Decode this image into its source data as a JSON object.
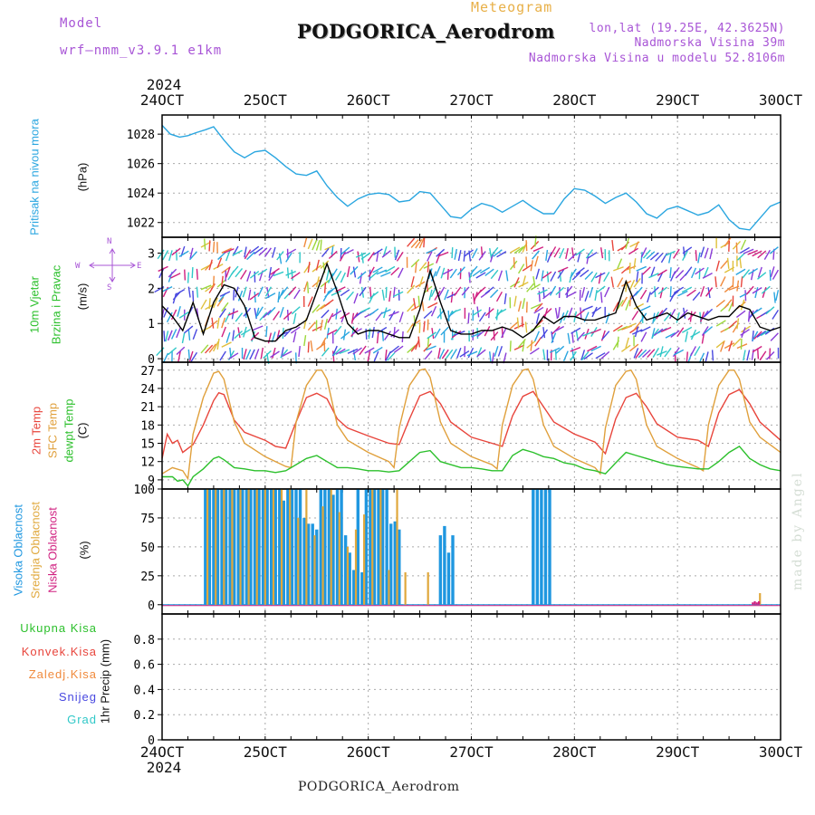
{
  "header": {
    "model_label": "Model",
    "model_name": "wrf–nmm_v3.9.1  e1km",
    "chart_kind": "Meteogram",
    "station": "PODGORICA_Aerodrom",
    "lonlat": "lon,lat (19.25E, 42.3625N)",
    "altitude": "Nadmorska Visina 39m",
    "model_altitude": "Nadmorska Visina u modelu 52.8106m",
    "footer_station": "PODGORICA_Aerodrom",
    "credit": "made by Angel"
  },
  "time_axis": {
    "year": "2024",
    "labels": [
      "24OCT",
      "25OCT",
      "26OCT",
      "27OCT",
      "28OCT",
      "29OCT",
      "30OCT"
    ]
  },
  "panel_labels": {
    "pressure_a": "Pritisak na nivou mora",
    "pressure_unit": "(hPa)",
    "wind_a": "10m Vjetar",
    "wind_b": "Brzina i Pravac",
    "wind_unit": "(m/s)",
    "compass_n": "N",
    "compass_s": "S",
    "compass_w": "W",
    "compass_e": "E",
    "temp_a": "2m Temp",
    "temp_b": "SFC Temp",
    "temp_c": "dewpt Temp",
    "temp_unit": "(C)",
    "cloud_a": "Visoka Oblacnost",
    "cloud_b": "Srednja Oblacnost",
    "cloud_c": "Niska Oblacnost",
    "cloud_unit": "(%)",
    "precip_unit": "1hr Precip (mm)",
    "precip_items": [
      "Ukupna Kisa",
      "Konvek.Kisa",
      "Zaledj.Kisa",
      "Snijeg",
      "Grad"
    ]
  },
  "colors": {
    "pressure": "#2aa6e0",
    "wind_speed": "#000000",
    "temp2m": "#e8453c",
    "sfc": "#e0a03c",
    "dewpt": "#2cc02c",
    "cloud_high": "#1f97e0",
    "cloud_mid": "#e0a83c",
    "cloud_low": "#d02080",
    "precip_total": "#2cc02c",
    "precip_conv": "#e8453c",
    "precip_frz": "#f08a3c",
    "precip_snow": "#4848e0",
    "precip_hail": "#30c8c8",
    "label_wind_a": "#2cc02c",
    "label_wind_b": "#2cc02c",
    "label_compass": "#a855d6"
  },
  "chart_data": [
    {
      "type": "line",
      "panel": "pressure",
      "x_unit": "days since 24 OCT 00UTC",
      "ylim": [
        1021,
        1029.3
      ],
      "yticks": [
        1022,
        1024,
        1026,
        1028
      ],
      "series": [
        {
          "x": [
            0.0,
            0.08,
            0.17,
            0.25,
            0.33,
            0.42,
            0.5,
            0.6,
            0.7,
            0.8,
            0.9,
            1.0,
            1.1,
            1.2,
            1.3,
            1.4,
            1.5,
            1.6,
            1.7,
            1.8,
            1.9,
            2.0,
            2.1,
            2.2,
            2.3,
            2.4,
            2.5,
            2.6,
            2.7,
            2.8,
            2.9,
            3.0,
            3.1,
            3.2,
            3.3,
            3.4,
            3.5,
            3.6,
            3.7,
            3.8,
            3.9,
            4.0,
            4.1,
            4.2,
            4.3,
            4.4,
            4.5,
            4.6,
            4.7,
            4.8,
            4.9,
            5.0,
            5.1,
            5.2,
            5.3,
            5.4,
            5.5,
            5.6,
            5.7,
            5.8,
            5.9,
            6.0
          ],
          "values": [
            1028.6,
            1028.0,
            1027.8,
            1027.9,
            1028.1,
            1028.3,
            1028.5,
            1027.6,
            1026.8,
            1026.4,
            1026.8,
            1026.9,
            1026.4,
            1025.8,
            1025.3,
            1025.2,
            1025.5,
            1024.5,
            1023.7,
            1023.1,
            1023.6,
            1023.9,
            1024.0,
            1023.9,
            1023.4,
            1023.5,
            1024.1,
            1024.0,
            1023.2,
            1022.4,
            1022.3,
            1022.9,
            1023.3,
            1023.1,
            1022.7,
            1023.1,
            1023.5,
            1023.0,
            1022.6,
            1022.6,
            1023.6,
            1024.3,
            1024.2,
            1023.8,
            1023.3,
            1023.7,
            1024.0,
            1023.4,
            1022.6,
            1022.3,
            1022.9,
            1023.1,
            1022.8,
            1022.5,
            1022.7,
            1023.2,
            1022.2,
            1021.6,
            1021.5,
            1022.3,
            1023.1,
            1023.4
          ]
        }
      ]
    },
    {
      "type": "line",
      "panel": "wind",
      "x_unit": "days since 24 OCT 00UTC",
      "ylim": [
        -0.1,
        3.45
      ],
      "yticks": [
        0,
        1,
        2,
        3
      ],
      "series": [
        {
          "name": "speed",
          "x": [
            0.0,
            0.1,
            0.2,
            0.3,
            0.4,
            0.5,
            0.6,
            0.7,
            0.8,
            0.9,
            1.0,
            1.1,
            1.2,
            1.3,
            1.4,
            1.5,
            1.6,
            1.7,
            1.8,
            1.9,
            2.0,
            2.1,
            2.2,
            2.3,
            2.4,
            2.5,
            2.6,
            2.7,
            2.8,
            2.9,
            3.0,
            3.1,
            3.2,
            3.3,
            3.4,
            3.5,
            3.6,
            3.7,
            3.8,
            3.9,
            4.0,
            4.1,
            4.2,
            4.3,
            4.4,
            4.5,
            4.6,
            4.7,
            4.8,
            4.9,
            5.0,
            5.1,
            5.2,
            5.3,
            5.4,
            5.5,
            5.6,
            5.7,
            5.8,
            5.9,
            6.0
          ],
          "values": [
            1.5,
            1.2,
            0.8,
            1.6,
            0.7,
            1.6,
            2.1,
            2.0,
            1.5,
            0.6,
            0.5,
            0.5,
            0.8,
            0.9,
            1.1,
            1.9,
            2.7,
            1.9,
            1.0,
            0.7,
            0.8,
            0.8,
            0.7,
            0.6,
            0.6,
            1.4,
            2.5,
            1.6,
            0.8,
            0.7,
            0.7,
            0.8,
            0.8,
            0.9,
            0.8,
            0.6,
            0.8,
            1.2,
            1.0,
            1.2,
            1.2,
            1.1,
            1.1,
            1.2,
            1.3,
            2.2,
            1.5,
            1.1,
            1.2,
            1.3,
            1.1,
            1.3,
            1.2,
            1.1,
            1.2,
            1.2,
            1.5,
            1.4,
            0.9,
            0.8,
            0.9
          ]
        }
      ]
    },
    {
      "type": "line",
      "panel": "temperature",
      "x_unit": "days since 24 OCT 00UTC",
      "ylim": [
        7.5,
        28.3
      ],
      "yticks": [
        9,
        12,
        15,
        18,
        21,
        24,
        27
      ],
      "series": [
        {
          "name": "2m Temp",
          "x": [
            0.0,
            0.05,
            0.1,
            0.15,
            0.2,
            0.3,
            0.4,
            0.5,
            0.55,
            0.6,
            0.7,
            0.8,
            1.0,
            1.1,
            1.2,
            1.3,
            1.4,
            1.5,
            1.6,
            1.7,
            1.8,
            2.0,
            2.2,
            2.3,
            2.4,
            2.5,
            2.6,
            2.7,
            2.8,
            3.0,
            3.2,
            3.3,
            3.4,
            3.5,
            3.6,
            3.7,
            3.8,
            4.0,
            4.2,
            4.3,
            4.4,
            4.5,
            4.6,
            4.7,
            4.8,
            5.0,
            5.2,
            5.3,
            5.4,
            5.5,
            5.6,
            5.7,
            5.8,
            6.0
          ],
          "values": [
            12.5,
            16.5,
            15.0,
            15.5,
            13.5,
            14.8,
            18.0,
            22.0,
            23.3,
            23.0,
            18.8,
            16.8,
            15.5,
            14.5,
            14.2,
            18.5,
            22.5,
            23.2,
            22.3,
            19.0,
            17.5,
            16.2,
            15.0,
            14.8,
            19.0,
            22.8,
            23.5,
            21.5,
            18.5,
            16.0,
            15.0,
            14.5,
            19.5,
            22.7,
            23.5,
            21.0,
            18.5,
            16.5,
            15.2,
            13.3,
            19.0,
            22.5,
            23.2,
            21.0,
            18.2,
            16.0,
            15.5,
            14.5,
            20.0,
            23.0,
            23.8,
            21.5,
            18.5,
            15.5
          ]
        },
        {
          "name": "SFC Temp",
          "x": [
            0.0,
            0.1,
            0.2,
            0.25,
            0.3,
            0.4,
            0.5,
            0.55,
            0.6,
            0.7,
            0.8,
            1.0,
            1.1,
            1.2,
            1.25,
            1.3,
            1.4,
            1.5,
            1.55,
            1.6,
            1.7,
            1.8,
            2.0,
            2.2,
            2.25,
            2.3,
            2.4,
            2.5,
            2.55,
            2.6,
            2.7,
            2.8,
            3.0,
            3.2,
            3.25,
            3.3,
            3.4,
            3.5,
            3.55,
            3.6,
            3.7,
            3.8,
            4.0,
            4.2,
            4.25,
            4.3,
            4.4,
            4.5,
            4.55,
            4.6,
            4.7,
            4.8,
            5.0,
            5.2,
            5.25,
            5.3,
            5.4,
            5.5,
            5.55,
            5.6,
            5.7,
            5.8,
            6.0
          ],
          "values": [
            10.0,
            11.0,
            10.5,
            9.2,
            16.5,
            22.5,
            26.5,
            26.8,
            25.5,
            18.5,
            15.0,
            12.8,
            12.0,
            11.2,
            11.0,
            18.5,
            24.5,
            27.0,
            27.0,
            25.5,
            18.0,
            15.5,
            13.5,
            12.0,
            11.0,
            17.5,
            24.5,
            27.0,
            27.2,
            25.8,
            18.5,
            15.0,
            12.8,
            11.5,
            10.8,
            18.0,
            24.5,
            27.0,
            27.2,
            25.5,
            18.0,
            14.5,
            12.5,
            11.0,
            10.0,
            17.5,
            24.5,
            26.8,
            27.0,
            25.5,
            18.0,
            14.5,
            12.5,
            11.0,
            10.5,
            18.0,
            24.5,
            27.0,
            27.0,
            25.5,
            18.5,
            16.0,
            13.5
          ]
        },
        {
          "name": "dewpt Temp",
          "x": [
            0.0,
            0.1,
            0.15,
            0.2,
            0.25,
            0.3,
            0.4,
            0.5,
            0.55,
            0.6,
            0.7,
            0.8,
            0.9,
            1.0,
            1.1,
            1.2,
            1.3,
            1.4,
            1.5,
            1.6,
            1.7,
            1.8,
            1.9,
            2.0,
            2.1,
            2.2,
            2.3,
            2.4,
            2.5,
            2.6,
            2.7,
            2.8,
            2.9,
            3.0,
            3.1,
            3.2,
            3.3,
            3.4,
            3.5,
            3.6,
            3.7,
            3.8,
            3.9,
            4.0,
            4.1,
            4.2,
            4.3,
            4.4,
            4.5,
            4.6,
            4.7,
            4.8,
            4.9,
            5.0,
            5.1,
            5.2,
            5.3,
            5.4,
            5.5,
            5.6,
            5.7,
            5.8,
            5.9,
            6.0
          ],
          "values": [
            9.5,
            9.5,
            8.8,
            9.0,
            8.0,
            9.5,
            10.8,
            12.5,
            12.8,
            12.3,
            11.0,
            10.8,
            10.5,
            10.5,
            10.2,
            10.5,
            11.5,
            12.5,
            13.0,
            12.0,
            11.0,
            11.0,
            10.8,
            10.5,
            10.5,
            10.3,
            10.5,
            12.0,
            13.5,
            13.8,
            12.0,
            11.5,
            11.0,
            11.0,
            10.8,
            10.5,
            10.5,
            13.0,
            14.0,
            13.5,
            12.8,
            12.5,
            11.8,
            11.5,
            10.8,
            10.5,
            10.0,
            11.8,
            13.5,
            13.0,
            12.5,
            12.0,
            11.5,
            11.2,
            11.0,
            10.8,
            10.8,
            12.0,
            13.5,
            14.5,
            12.5,
            11.5,
            10.8,
            10.5
          ]
        }
      ]
    },
    {
      "type": "bar",
      "panel": "cloud",
      "x_unit": "days since 24 OCT 00UTC",
      "ylim": [
        -8,
        100
      ],
      "yticks": [
        0,
        25,
        50,
        75,
        100
      ],
      "series": [
        {
          "name": "Visoka Oblacnost",
          "x": [
            0.42,
            0.46,
            0.5,
            0.54,
            0.58,
            0.62,
            0.66,
            0.7,
            0.74,
            0.78,
            0.82,
            0.86,
            0.9,
            0.94,
            0.98,
            1.02,
            1.06,
            1.1,
            1.14,
            1.18,
            1.22,
            1.26,
            1.3,
            1.34,
            1.38,
            1.42,
            1.46,
            1.5,
            1.54,
            1.58,
            1.62,
            1.66,
            1.7,
            1.74,
            1.78,
            1.82,
            1.86,
            1.9,
            1.94,
            1.98,
            2.02,
            2.06,
            2.1,
            2.14,
            2.18,
            2.22,
            2.26,
            2.3,
            2.62,
            2.66,
            2.7,
            2.74,
            2.78,
            2.82,
            3.6,
            3.64,
            3.68,
            3.72,
            3.76,
            3.8,
            3.84,
            3.88,
            3.92
          ],
          "values": [
            100,
            100,
            100,
            100,
            100,
            100,
            100,
            100,
            100,
            100,
            100,
            100,
            100,
            100,
            100,
            100,
            100,
            100,
            100,
            90,
            100,
            100,
            100,
            100,
            75,
            70,
            70,
            65,
            100,
            100,
            100,
            95,
            100,
            100,
            60,
            45,
            30,
            100,
            28,
            100,
            100,
            100,
            100,
            100,
            100,
            70,
            72,
            65,
            0,
            0,
            60,
            68,
            45,
            60,
            100,
            100,
            100,
            100,
            100,
            0,
            0,
            0,
            0
          ]
        },
        {
          "name": "Srednja Oblacnost",
          "x": [
            0.44,
            0.52,
            0.6,
            0.68,
            0.76,
            0.84,
            0.92,
            1.0,
            1.08,
            1.16,
            1.24,
            1.32,
            1.4,
            1.48,
            1.56,
            1.64,
            1.72,
            1.8,
            1.88,
            1.96,
            2.04,
            2.12,
            2.2,
            2.28,
            2.36,
            2.58,
            5.8
          ],
          "values": [
            100,
            100,
            100,
            100,
            100,
            100,
            100,
            100,
            100,
            100,
            100,
            75,
            100,
            60,
            85,
            100,
            80,
            50,
            65,
            78,
            100,
            100,
            30,
            100,
            28,
            28,
            10
          ]
        },
        {
          "name": "Niska Oblacnost",
          "x": [
            5.73,
            5.75,
            5.77,
            5.79
          ],
          "values": [
            2,
            3,
            2,
            3
          ]
        }
      ]
    },
    {
      "type": "bar",
      "panel": "precip",
      "x_unit": "days since 24 OCT 00UTC",
      "ylim": [
        0,
        1.0
      ],
      "yticks": [
        0,
        0.2,
        0.4,
        0.6,
        0.8
      ],
      "series": [
        {
          "name": "Ukupna Kisa",
          "values": []
        },
        {
          "name": "Konvek.Kisa",
          "values": []
        },
        {
          "name": "Zaledj.Kisa",
          "values": []
        },
        {
          "name": "Snijeg",
          "values": []
        },
        {
          "name": "Grad",
          "values": []
        }
      ]
    }
  ]
}
